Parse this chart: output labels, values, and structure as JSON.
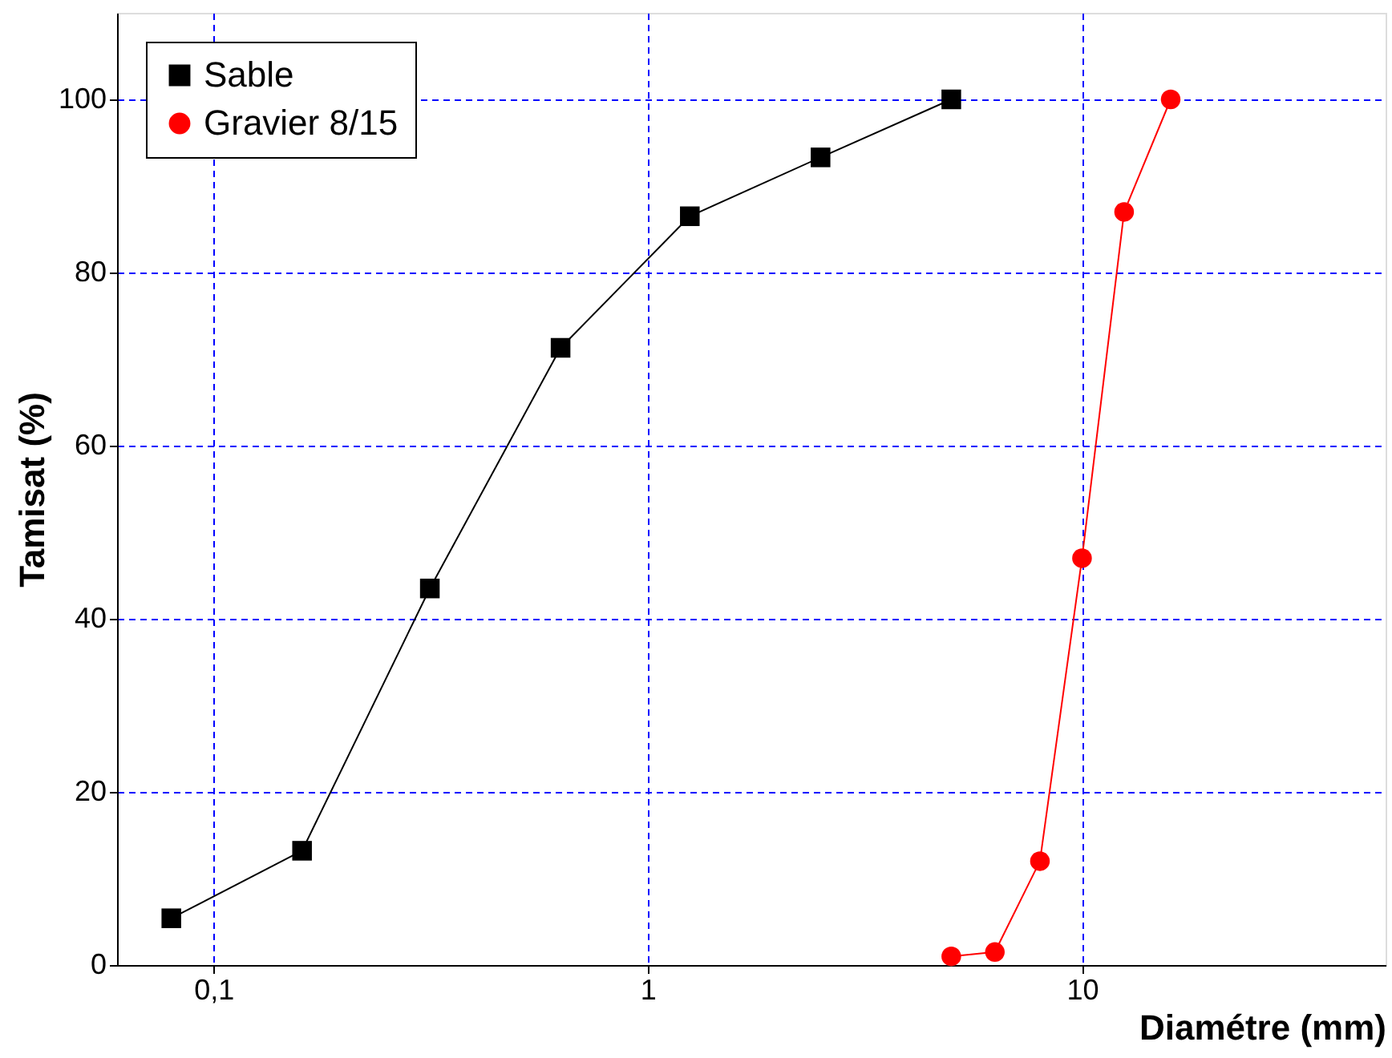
{
  "chart_data": {
    "type": "line",
    "xlabel": "Diamétre (mm)",
    "ylabel": "Tamisat (%)",
    "log": "x",
    "xlim": [
      0.06,
      50
    ],
    "xticks": [
      {
        "value": 0.1,
        "label": "0,1"
      },
      1,
      10
    ],
    "ylim": [
      0,
      110
    ],
    "yticks": [
      0,
      20,
      40,
      60,
      80,
      100
    ],
    "grid": true,
    "legend": "top left",
    "line_style": "solid",
    "series": [
      {
        "name": "Sable",
        "color": "#000000",
        "marker": "square",
        "x": [
          0.08,
          0.16,
          0.315,
          0.63,
          1.25,
          2.5,
          5
        ],
        "values": [
          5.4,
          13.2,
          43.5,
          71.3,
          86.5,
          93.3,
          100
        ]
      },
      {
        "name": "Gravier 8/15",
        "color": "#ff0000",
        "marker": "circle",
        "x": [
          5,
          6.3,
          8,
          10,
          12.5,
          16
        ],
        "values": [
          1,
          1.5,
          12,
          47,
          87,
          100
        ]
      }
    ]
  }
}
